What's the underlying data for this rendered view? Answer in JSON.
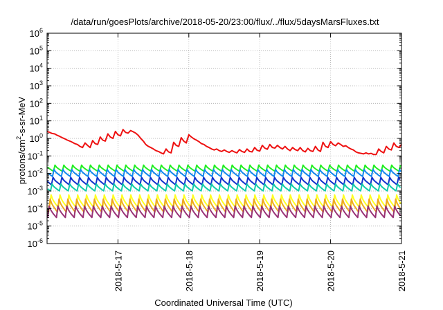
{
  "chart_data": {
    "type": "line",
    "title": "/data/run/goesPlots/archive/2018-05-20/23:00/flux/../flux/5daysMarsFluxes.txt",
    "xlabel": "Coordinated Universal Time (UTC)",
    "ylabel": "protons/cm²-s-sr-MeV",
    "ylabel_parts": {
      "main": "protons/cm",
      "sup": "2",
      "rest": "-s-sr-MeV"
    },
    "xlim": [
      "2018-05-16 00:00",
      "2018-05-21 00:00"
    ],
    "ylim": [
      1e-06,
      1000000.0
    ],
    "yscale": "log",
    "grid": true,
    "x_ticks": [
      {
        "label": "2018-5-17",
        "value": "2018-05-17"
      },
      {
        "label": "2018-5-18",
        "value": "2018-05-18"
      },
      {
        "label": "2018-5-19",
        "value": "2018-05-19"
      },
      {
        "label": "2018-5-20",
        "value": "2018-05-20"
      },
      {
        "label": "2018-5-21",
        "value": "2018-05-21"
      }
    ],
    "y_ticks": [
      {
        "base": "10",
        "exp": "-6",
        "value": 1e-06
      },
      {
        "base": "10",
        "exp": "-5",
        "value": 1e-05
      },
      {
        "base": "10",
        "exp": "-4",
        "value": 0.0001
      },
      {
        "base": "10",
        "exp": "-3",
        "value": 0.001
      },
      {
        "base": "10",
        "exp": "-2",
        "value": 0.01
      },
      {
        "base": "10",
        "exp": "-1",
        "value": 0.1
      },
      {
        "base": "10",
        "exp": "0",
        "value": 1
      },
      {
        "base": "10",
        "exp": "1",
        "value": 10
      },
      {
        "base": "10",
        "exp": "2",
        "value": 100
      },
      {
        "base": "10",
        "exp": "3",
        "value": 1000
      },
      {
        "base": "10",
        "exp": "4",
        "value": 10000
      },
      {
        "base": "10",
        "exp": "5",
        "value": 100000
      },
      {
        "base": "10",
        "exp": "6",
        "value": 1000000
      }
    ],
    "series": [
      {
        "color": "#ee1111",
        "values": [
          2.5,
          2.2,
          1.9,
          1.8,
          1.5,
          1.3,
          1.1,
          0.95,
          0.8,
          0.7,
          0.6,
          0.5,
          0.45,
          0.35,
          0.3,
          0.55,
          0.4,
          0.3,
          0.75,
          0.5,
          0.45,
          1.2,
          0.8,
          0.7,
          1.8,
          1.2,
          1.0,
          2.5,
          1.6,
          1.4,
          3.2,
          2.2,
          2.0,
          2.8,
          2.4,
          2.0,
          1.5,
          1.0,
          0.7,
          0.45,
          0.35,
          0.3,
          0.25,
          0.2,
          0.18,
          0.15,
          0.13,
          0.25,
          0.17,
          0.15,
          0.6,
          0.4,
          0.35,
          1.1,
          0.7,
          0.55,
          1.6,
          1.2,
          0.95,
          0.8,
          0.65,
          0.5,
          0.45,
          0.35,
          0.3,
          0.25,
          0.22,
          0.25,
          0.2,
          0.18,
          0.22,
          0.18,
          0.16,
          0.2,
          0.17,
          0.15,
          0.23,
          0.18,
          0.16,
          0.25,
          0.18,
          0.17,
          0.3,
          0.21,
          0.19,
          0.4,
          0.28,
          0.24,
          0.45,
          0.3,
          0.28,
          0.4,
          0.3,
          0.25,
          0.35,
          0.25,
          0.2,
          0.3,
          0.23,
          0.2,
          0.3,
          0.2,
          0.17,
          0.27,
          0.2,
          0.18,
          0.35,
          0.22,
          0.18,
          0.6,
          0.35,
          0.3,
          0.65,
          0.45,
          0.38,
          0.55,
          0.45,
          0.35,
          0.38,
          0.3,
          0.25,
          0.22,
          0.17,
          0.15,
          0.14,
          0.13,
          0.15,
          0.13,
          0.14,
          0.12,
          0.12,
          0.25,
          0.18,
          0.15,
          0.35,
          0.25,
          0.22,
          0.55,
          0.35,
          0.3,
          0.45
        ]
      },
      {
        "color": "#22ee22",
        "low": 0.012,
        "high": 0.03
      },
      {
        "color": "#1188ee",
        "low": 0.006,
        "high": 0.017
      },
      {
        "color": "#1133cc",
        "low": 0.002,
        "high": 0.006
      },
      {
        "color": "#11ccaa",
        "low": 0.0009,
        "high": 0.0025
      },
      {
        "color": "#ffff22",
        "low": 9e-05,
        "high": 0.0006
      },
      {
        "color": "#eeaa22",
        "low": 5e-05,
        "high": 0.00035
      },
      {
        "color": "#993377",
        "low": 2.5e-05,
        "high": 0.00014
      }
    ]
  }
}
